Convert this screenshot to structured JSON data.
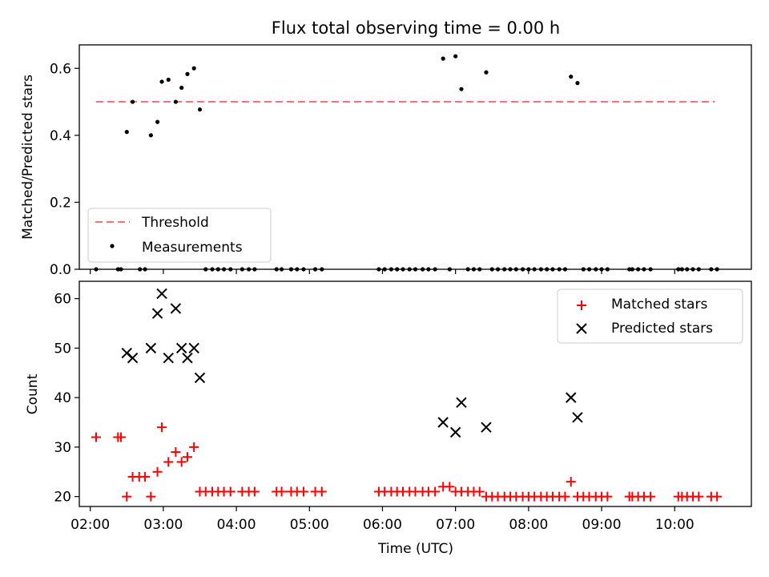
{
  "chart_data": [
    {
      "type": "scatter",
      "title": "Flux total observing time = 0.00 h",
      "xlabel": "",
      "ylabel": "Matched/Predicted stars",
      "xlim": [
        1.85,
        11.05
      ],
      "ylim": [
        0,
        0.67
      ],
      "yticks": [
        0.0,
        0.2,
        0.4,
        0.6
      ],
      "ytick_labels": [
        "0.0",
        "0.2",
        "0.4",
        "0.6"
      ],
      "xticks": [
        2,
        3,
        4,
        5,
        6,
        7,
        8,
        9,
        10
      ],
      "grid": false,
      "legend_position": "bottom-left",
      "threshold": {
        "name": "Threshold",
        "value": 0.5,
        "x": [
          2.08,
          10.55
        ],
        "color": "#ff7070",
        "style": "dashed"
      },
      "series": [
        {
          "name": "Measurements",
          "color": "#000000",
          "marker": "dot",
          "points": [
            [
              2.08,
              0.0
            ],
            [
              2.38,
              0.0
            ],
            [
              2.42,
              0.0
            ],
            [
              2.5,
              0.41
            ],
            [
              2.58,
              0.5
            ],
            [
              2.68,
              0.0
            ],
            [
              2.75,
              0.0
            ],
            [
              2.83,
              0.4
            ],
            [
              2.92,
              0.44
            ],
            [
              2.98,
              0.56
            ],
            [
              3.07,
              0.566
            ],
            [
              3.17,
              0.5
            ],
            [
              3.25,
              0.542
            ],
            [
              3.33,
              0.583
            ],
            [
              3.42,
              0.6
            ],
            [
              3.5,
              0.477
            ],
            [
              3.58,
              0.0
            ],
            [
              3.67,
              0.0
            ],
            [
              3.75,
              0.0
            ],
            [
              3.83,
              0.0
            ],
            [
              3.92,
              0.0
            ],
            [
              4.08,
              0.0
            ],
            [
              4.17,
              0.0
            ],
            [
              4.25,
              0.0
            ],
            [
              4.55,
              0.0
            ],
            [
              4.62,
              0.0
            ],
            [
              4.75,
              0.0
            ],
            [
              4.83,
              0.0
            ],
            [
              4.92,
              0.0
            ],
            [
              5.08,
              0.0
            ],
            [
              5.17,
              0.0
            ],
            [
              5.95,
              0.0
            ],
            [
              6.03,
              0.0
            ],
            [
              6.12,
              0.0
            ],
            [
              6.2,
              0.0
            ],
            [
              6.28,
              0.0
            ],
            [
              6.37,
              0.0
            ],
            [
              6.45,
              0.0
            ],
            [
              6.55,
              0.0
            ],
            [
              6.63,
              0.0
            ],
            [
              6.72,
              0.0
            ],
            [
              6.83,
              0.629
            ],
            [
              6.92,
              0.0
            ],
            [
              7.0,
              0.636
            ],
            [
              7.08,
              0.538
            ],
            [
              7.17,
              0.0
            ],
            [
              7.25,
              0.0
            ],
            [
              7.33,
              0.0
            ],
            [
              7.42,
              0.588
            ],
            [
              7.5,
              0.0
            ],
            [
              7.58,
              0.0
            ],
            [
              7.67,
              0.0
            ],
            [
              7.75,
              0.0
            ],
            [
              7.83,
              0.0
            ],
            [
              7.92,
              0.0
            ],
            [
              8.0,
              0.0
            ],
            [
              8.08,
              0.0
            ],
            [
              8.17,
              0.0
            ],
            [
              8.25,
              0.0
            ],
            [
              8.33,
              0.0
            ],
            [
              8.42,
              0.0
            ],
            [
              8.5,
              0.0
            ],
            [
              8.58,
              0.575
            ],
            [
              8.67,
              0.556
            ],
            [
              8.75,
              0.0
            ],
            [
              8.83,
              0.0
            ],
            [
              8.92,
              0.0
            ],
            [
              9.0,
              0.0
            ],
            [
              9.08,
              0.0
            ],
            [
              9.38,
              0.0
            ],
            [
              9.42,
              0.0
            ],
            [
              9.5,
              0.0
            ],
            [
              9.58,
              0.0
            ],
            [
              9.67,
              0.0
            ],
            [
              10.05,
              0.0
            ],
            [
              10.1,
              0.0
            ],
            [
              10.17,
              0.0
            ],
            [
              10.25,
              0.0
            ],
            [
              10.33,
              0.0
            ],
            [
              10.5,
              0.0
            ],
            [
              10.58,
              0.0
            ]
          ]
        }
      ]
    },
    {
      "type": "scatter",
      "title": "",
      "xlabel": "Time (UTC)",
      "ylabel": "Count",
      "xlim": [
        1.85,
        11.05
      ],
      "ylim": [
        18,
        63.5
      ],
      "yticks": [
        20,
        30,
        40,
        50,
        60
      ],
      "ytick_labels": [
        "20",
        "30",
        "40",
        "50",
        "60"
      ],
      "xticks": [
        2,
        3,
        4,
        5,
        6,
        7,
        8,
        9,
        10
      ],
      "xtick_labels": [
        "02:00",
        "03:00",
        "04:00",
        "05:00",
        "06:00",
        "07:00",
        "08:00",
        "09:00",
        "10:00"
      ],
      "grid": false,
      "legend_position": "top-right",
      "series": [
        {
          "name": "Matched stars",
          "color": "#ff0000",
          "marker": "plus",
          "points": [
            [
              2.08,
              32
            ],
            [
              2.38,
              32
            ],
            [
              2.42,
              32
            ],
            [
              2.5,
              20
            ],
            [
              2.58,
              24
            ],
            [
              2.67,
              24
            ],
            [
              2.75,
              24
            ],
            [
              2.83,
              20
            ],
            [
              2.92,
              25
            ],
            [
              2.98,
              34
            ],
            [
              3.07,
              27
            ],
            [
              3.17,
              29
            ],
            [
              3.25,
              27
            ],
            [
              3.33,
              28
            ],
            [
              3.42,
              30
            ],
            [
              3.5,
              21
            ],
            [
              3.58,
              21
            ],
            [
              3.67,
              21
            ],
            [
              3.75,
              21
            ],
            [
              3.83,
              21
            ],
            [
              3.92,
              21
            ],
            [
              4.08,
              21
            ],
            [
              4.17,
              21
            ],
            [
              4.25,
              21
            ],
            [
              4.55,
              21
            ],
            [
              4.62,
              21
            ],
            [
              4.75,
              21
            ],
            [
              4.83,
              21
            ],
            [
              4.92,
              21
            ],
            [
              5.08,
              21
            ],
            [
              5.17,
              21
            ],
            [
              5.95,
              21
            ],
            [
              6.03,
              21
            ],
            [
              6.12,
              21
            ],
            [
              6.2,
              21
            ],
            [
              6.28,
              21
            ],
            [
              6.37,
              21
            ],
            [
              6.45,
              21
            ],
            [
              6.55,
              21
            ],
            [
              6.63,
              21
            ],
            [
              6.72,
              21
            ],
            [
              6.83,
              22
            ],
            [
              6.92,
              22
            ],
            [
              7.0,
              21
            ],
            [
              7.08,
              21
            ],
            [
              7.17,
              21
            ],
            [
              7.25,
              21
            ],
            [
              7.33,
              21
            ],
            [
              7.42,
              20
            ],
            [
              7.5,
              20
            ],
            [
              7.58,
              20
            ],
            [
              7.67,
              20
            ],
            [
              7.75,
              20
            ],
            [
              7.83,
              20
            ],
            [
              7.92,
              20
            ],
            [
              8.0,
              20
            ],
            [
              8.08,
              20
            ],
            [
              8.17,
              20
            ],
            [
              8.25,
              20
            ],
            [
              8.33,
              20
            ],
            [
              8.42,
              20
            ],
            [
              8.5,
              20
            ],
            [
              8.58,
              23
            ],
            [
              8.67,
              20
            ],
            [
              8.75,
              20
            ],
            [
              8.83,
              20
            ],
            [
              8.92,
              20
            ],
            [
              9.0,
              20
            ],
            [
              9.08,
              20
            ],
            [
              9.38,
              20
            ],
            [
              9.42,
              20
            ],
            [
              9.5,
              20
            ],
            [
              9.58,
              20
            ],
            [
              9.67,
              20
            ],
            [
              10.05,
              20
            ],
            [
              10.1,
              20
            ],
            [
              10.17,
              20
            ],
            [
              10.25,
              20
            ],
            [
              10.33,
              20
            ],
            [
              10.5,
              20
            ],
            [
              10.58,
              20
            ]
          ]
        },
        {
          "name": "Predicted stars",
          "color": "#000000",
          "marker": "x",
          "points": [
            [
              2.5,
              49
            ],
            [
              2.58,
              48
            ],
            [
              2.83,
              50
            ],
            [
              2.92,
              57
            ],
            [
              2.98,
              61
            ],
            [
              3.07,
              48
            ],
            [
              3.17,
              58
            ],
            [
              3.25,
              50
            ],
            [
              3.33,
              48
            ],
            [
              3.42,
              50
            ],
            [
              3.5,
              44
            ],
            [
              6.83,
              35
            ],
            [
              7.0,
              33
            ],
            [
              7.08,
              39
            ],
            [
              7.42,
              34
            ],
            [
              8.58,
              40
            ],
            [
              8.67,
              36
            ]
          ]
        }
      ]
    }
  ]
}
